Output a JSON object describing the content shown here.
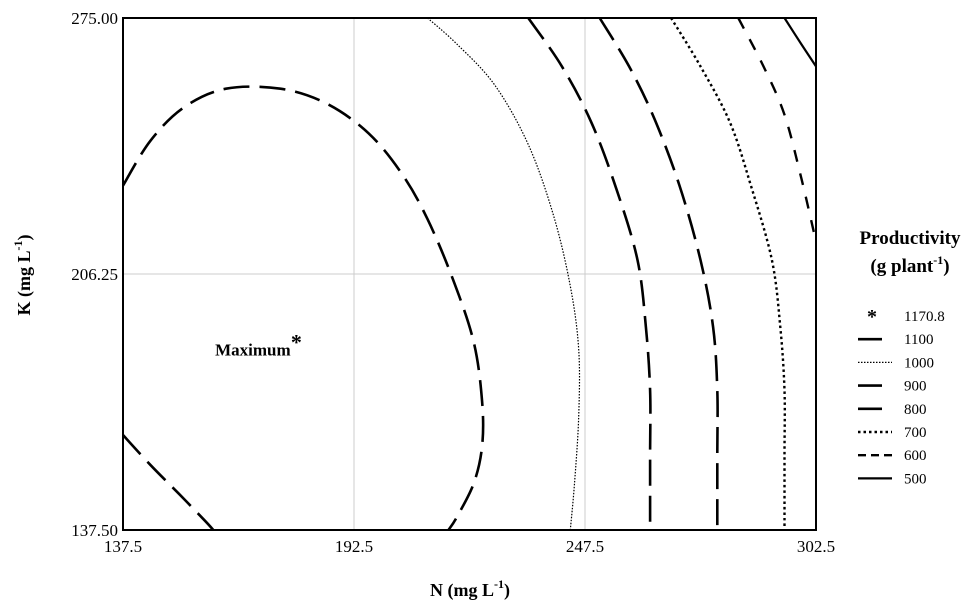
{
  "chart_data": {
    "type": "contour",
    "xlabel": "N (mg L",
    "xlabel_sup": "-1",
    "xlabel_end": ")",
    "ylabel": "K (mg L",
    "ylabel_sup": "-1",
    "ylabel_end": ")",
    "xlim": [
      137.5,
      302.5
    ],
    "ylim": [
      137.5,
      275.0
    ],
    "x_ticks": [
      "137.5",
      "192.5",
      "247.5",
      "302.5"
    ],
    "y_ticks": [
      "137.50",
      "206.25",
      "275.00"
    ],
    "grid": true,
    "maximum": {
      "label": "Maximum",
      "marker": "*",
      "n": 177,
      "k": 186
    },
    "legend": {
      "title_line1": "Productivity",
      "title_line2": "(g plant",
      "title_line2_sup": "-1",
      "title_line2_end": ")",
      "placement": "right",
      "entries": [
        {
          "label": "1170.8",
          "style": "star"
        },
        {
          "label": "1100",
          "style": "longdash"
        },
        {
          "label": "1000",
          "style": "dotted-thin"
        },
        {
          "label": "900",
          "style": "longdash"
        },
        {
          "label": "800",
          "style": "longdash"
        },
        {
          "label": "700",
          "style": "dotted"
        },
        {
          "label": "600",
          "style": "dashed"
        },
        {
          "label": "500",
          "style": "solid"
        }
      ]
    },
    "series": [
      {
        "name": "1100",
        "style": "longdash",
        "points": [
          [
            137.5,
            230
          ],
          [
            144,
            242
          ],
          [
            152,
            251
          ],
          [
            162,
            256
          ],
          [
            175,
            256
          ],
          [
            186,
            252
          ],
          [
            196,
            244
          ],
          [
            204,
            233
          ],
          [
            210,
            221
          ],
          [
            216,
            205
          ],
          [
            221,
            188
          ],
          [
            223,
            172
          ],
          [
            223,
            160
          ],
          [
            221,
            150
          ],
          [
            217,
            141
          ],
          [
            215,
            137.5
          ]
        ]
      },
      {
        "name": "1100",
        "style": "longdash",
        "points": [
          [
            137.5,
            163
          ],
          [
            144,
            155
          ],
          [
            151,
            147
          ],
          [
            157,
            140
          ],
          [
            159,
            137.5
          ]
        ]
      },
      {
        "name": "1000",
        "style": "dotted-thin",
        "points": [
          [
            210,
            275
          ],
          [
            217,
            268
          ],
          [
            226,
            257
          ],
          [
            234,
            241
          ],
          [
            240,
            222
          ],
          [
            244,
            203
          ],
          [
            246,
            186
          ],
          [
            246,
            168
          ],
          [
            245,
            150
          ],
          [
            244,
            137.5
          ]
        ]
      },
      {
        "name": "900",
        "style": "longdash",
        "points": [
          [
            234,
            275
          ],
          [
            242,
            262
          ],
          [
            249,
            247
          ],
          [
            255,
            229
          ],
          [
            260,
            210
          ],
          [
            262,
            192
          ],
          [
            263,
            175
          ],
          [
            263,
            158
          ],
          [
            263,
            137.5
          ]
        ]
      },
      {
        "name": "800",
        "style": "longdash",
        "points": [
          [
            251,
            275
          ],
          [
            258,
            262
          ],
          [
            264,
            248
          ],
          [
            270,
            230
          ],
          [
            275,
            210
          ],
          [
            278,
            192
          ],
          [
            279,
            175
          ],
          [
            279,
            158
          ],
          [
            279,
            137.5
          ]
        ]
      },
      {
        "name": "700",
        "style": "dotted",
        "points": [
          [
            268,
            275
          ],
          [
            275,
            262
          ],
          [
            282,
            247
          ],
          [
            287,
            230
          ],
          [
            292,
            210
          ],
          [
            294,
            192
          ],
          [
            295,
            175
          ],
          [
            295,
            158
          ],
          [
            295,
            137.5
          ]
        ]
      },
      {
        "name": "600",
        "style": "dashed",
        "points": [
          [
            284,
            275
          ],
          [
            290,
            262
          ],
          [
            295,
            249
          ],
          [
            299,
            232
          ],
          [
            302.5,
            215
          ]
        ]
      },
      {
        "name": "500",
        "style": "solid",
        "points": [
          [
            295,
            275
          ],
          [
            299,
            268
          ],
          [
            302.5,
            262
          ]
        ]
      }
    ]
  }
}
